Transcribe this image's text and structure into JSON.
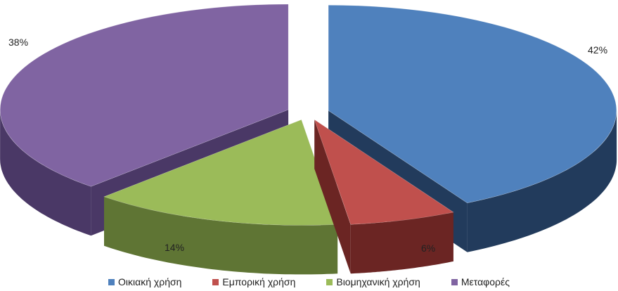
{
  "chart_data": {
    "type": "pie",
    "title": "",
    "categories": [
      "Οικιακή χρήση",
      "Εμπορική χρήση",
      "Βιομηχανική χρήση",
      "Μεταφορές"
    ],
    "values": [
      42,
      6,
      14,
      38
    ],
    "labels": [
      "42%",
      "6%",
      "14%",
      "38%"
    ],
    "unit": "%",
    "exploded": true,
    "three_d": true,
    "legend_position": "bottom",
    "colors": [
      "#4F81BD",
      "#C0504D",
      "#9BBB59",
      "#8064A2"
    ],
    "side_colors": [
      "#223B5C",
      "#6B2523",
      "#5F7534",
      "#4A3866"
    ]
  }
}
